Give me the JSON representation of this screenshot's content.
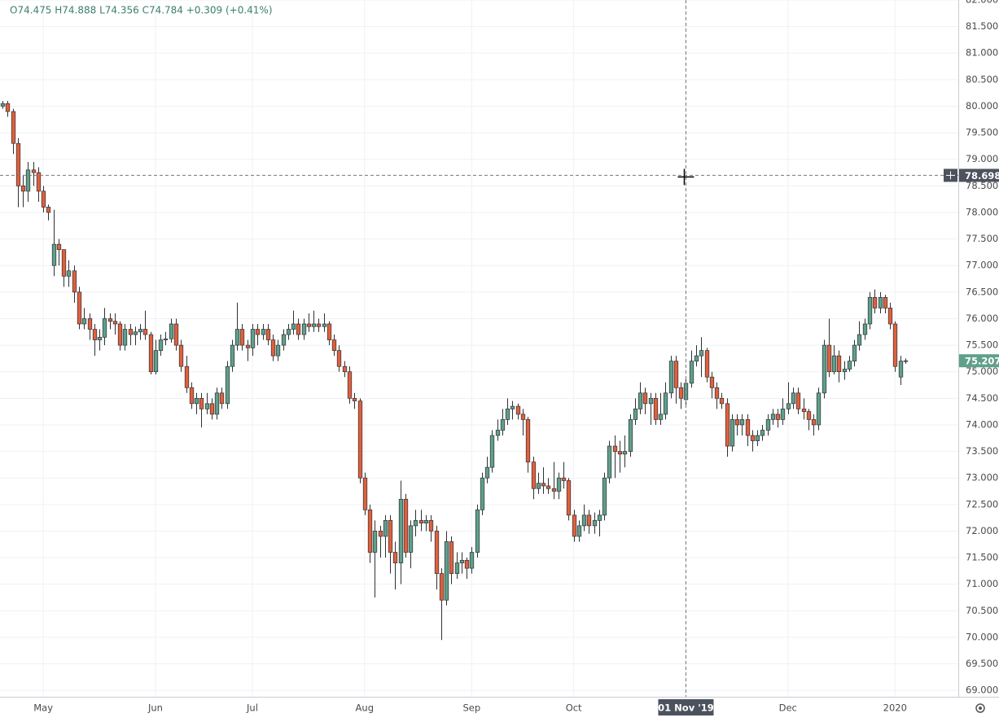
{
  "chart_data": {
    "type": "candlestick",
    "header": "O74.475 H74.888 L74.356 C74.784 +0.309 (+0.41%)",
    "up_color": "#5fa08a",
    "down_color": "#e0603d",
    "border_color": "#2f3136",
    "grid": true,
    "ylim": [
      68.88,
      82.0
    ],
    "yticks": [
      {
        "value": 69,
        "label": "69.000"
      },
      {
        "value": 69.5,
        "label": "69.500"
      },
      {
        "value": 70,
        "label": "70.000"
      },
      {
        "value": 70.5,
        "label": "70.500"
      },
      {
        "value": 71,
        "label": "71.000"
      },
      {
        "value": 71.5,
        "label": "71.500"
      },
      {
        "value": 72,
        "label": "72.000"
      },
      {
        "value": 72.5,
        "label": "72.500"
      },
      {
        "value": 73,
        "label": "73.000"
      },
      {
        "value": 73.5,
        "label": "73.500"
      },
      {
        "value": 74,
        "label": "74.000"
      },
      {
        "value": 74.5,
        "label": "74.500"
      },
      {
        "value": 75,
        "label": "75.000"
      },
      {
        "value": 75.5,
        "label": "75.500"
      },
      {
        "value": 76,
        "label": "76.000"
      },
      {
        "value": 76.5,
        "label": "76.500"
      },
      {
        "value": 77,
        "label": "77.000"
      },
      {
        "value": 77.5,
        "label": "77.500"
      },
      {
        "value": 78,
        "label": "78.000"
      },
      {
        "value": 78.5,
        "label": "78.500"
      },
      {
        "value": 79,
        "label": "79.000"
      },
      {
        "value": 79.5,
        "label": "79.500"
      },
      {
        "value": 80,
        "label": "80.000"
      },
      {
        "value": 80.5,
        "label": "80.500"
      },
      {
        "value": 81,
        "label": "81.000"
      },
      {
        "value": 81.5,
        "label": "81.500"
      },
      {
        "value": 82,
        "label": "82.000"
      }
    ],
    "xlim": [
      -0.48,
      187.4
    ],
    "xticks": [
      {
        "value": 8,
        "label": "May"
      },
      {
        "value": 30,
        "label": "Jun"
      },
      {
        "value": 49,
        "label": "Jul"
      },
      {
        "value": 71,
        "label": "Aug"
      },
      {
        "value": 92,
        "label": "Sep"
      },
      {
        "value": 112,
        "label": "Oct"
      },
      {
        "value": 134,
        "label": "01 Nov '19"
      },
      {
        "value": 154,
        "label": "Dec"
      },
      {
        "value": 175,
        "label": "2020"
      }
    ],
    "crosshair_price": 78.698,
    "last_price": 75.207,
    "candles": [
      [
        80.0,
        80.1,
        79.95,
        80.05
      ],
      [
        80.05,
        80.1,
        79.8,
        79.9
      ],
      [
        79.9,
        79.95,
        79.1,
        79.3
      ],
      [
        79.3,
        79.4,
        78.1,
        78.5
      ],
      [
        78.5,
        78.7,
        78.1,
        78.4
      ],
      [
        78.4,
        78.95,
        78.2,
        78.8
      ],
      [
        78.8,
        78.95,
        78.5,
        78.75
      ],
      [
        78.75,
        78.85,
        78.2,
        78.4
      ],
      [
        78.4,
        78.5,
        78.0,
        78.1
      ],
      [
        78.1,
        78.15,
        77.85,
        78.0
      ],
      [
        77.0,
        78.05,
        76.8,
        77.4
      ],
      [
        77.4,
        77.5,
        77.0,
        77.3
      ],
      [
        77.3,
        77.3,
        76.6,
        76.8
      ],
      [
        76.8,
        77.1,
        76.6,
        76.9
      ],
      [
        76.9,
        77.0,
        76.3,
        76.5
      ],
      [
        76.5,
        76.6,
        75.8,
        75.9
      ],
      [
        75.9,
        76.2,
        75.8,
        76.0
      ],
      [
        76.0,
        76.1,
        75.6,
        75.8
      ],
      [
        75.8,
        75.9,
        75.3,
        75.6
      ],
      [
        75.6,
        75.8,
        75.4,
        75.65
      ],
      [
        75.65,
        76.2,
        75.5,
        76.0
      ],
      [
        76.0,
        76.1,
        75.8,
        75.95
      ],
      [
        75.95,
        76.1,
        75.7,
        75.9
      ],
      [
        75.9,
        75.95,
        75.4,
        75.5
      ],
      [
        75.5,
        75.9,
        75.4,
        75.8
      ],
      [
        75.8,
        75.9,
        75.5,
        75.7
      ],
      [
        75.7,
        75.85,
        75.5,
        75.75
      ],
      [
        75.75,
        75.9,
        75.6,
        75.8
      ],
      [
        75.8,
        76.15,
        75.6,
        75.7
      ],
      [
        75.7,
        75.75,
        74.95,
        75.0
      ],
      [
        75.0,
        75.6,
        74.95,
        75.4
      ],
      [
        75.4,
        75.7,
        75.3,
        75.6
      ],
      [
        75.6,
        75.75,
        75.5,
        75.62
      ],
      [
        75.62,
        76.0,
        75.55,
        75.9
      ],
      [
        75.9,
        76.0,
        75.4,
        75.5
      ],
      [
        75.5,
        75.6,
        75.0,
        75.1
      ],
      [
        75.1,
        75.3,
        74.6,
        74.7
      ],
      [
        74.7,
        74.8,
        74.3,
        74.4
      ],
      [
        74.4,
        74.6,
        74.2,
        74.5
      ],
      [
        74.5,
        74.6,
        73.95,
        74.3
      ],
      [
        74.3,
        74.6,
        74.2,
        74.4
      ],
      [
        74.4,
        74.5,
        74.1,
        74.2
      ],
      [
        74.2,
        74.7,
        74.1,
        74.6
      ],
      [
        74.6,
        74.7,
        74.3,
        74.4
      ],
      [
        74.4,
        75.2,
        74.3,
        75.1
      ],
      [
        75.1,
        75.6,
        75.0,
        75.5
      ],
      [
        75.5,
        76.3,
        75.4,
        75.8
      ],
      [
        75.8,
        75.9,
        75.4,
        75.5
      ],
      [
        75.5,
        75.6,
        75.2,
        75.45
      ],
      [
        75.45,
        75.9,
        75.3,
        75.8
      ],
      [
        75.8,
        75.9,
        75.5,
        75.7
      ],
      [
        75.7,
        75.9,
        75.6,
        75.8
      ],
      [
        75.8,
        75.9,
        75.5,
        75.6
      ],
      [
        75.6,
        75.7,
        75.2,
        75.3
      ],
      [
        75.3,
        75.6,
        75.2,
        75.5
      ],
      [
        75.5,
        75.8,
        75.4,
        75.7
      ],
      [
        75.7,
        75.9,
        75.6,
        75.8
      ],
      [
        75.8,
        76.15,
        75.7,
        75.9
      ],
      [
        75.9,
        76.0,
        75.6,
        75.7
      ],
      [
        75.7,
        76.0,
        75.6,
        75.9
      ],
      [
        75.9,
        76.1,
        75.75,
        75.85
      ],
      [
        75.85,
        76.15,
        75.75,
        75.9
      ],
      [
        75.9,
        76.0,
        75.75,
        75.85
      ],
      [
        75.85,
        76.1,
        75.75,
        75.9
      ],
      [
        75.9,
        75.95,
        75.5,
        75.6
      ],
      [
        75.6,
        75.7,
        75.3,
        75.4
      ],
      [
        75.4,
        75.5,
        75.0,
        75.1
      ],
      [
        75.1,
        75.2,
        74.9,
        75.0
      ],
      [
        75.0,
        75.1,
        74.4,
        74.5
      ],
      [
        74.5,
        74.6,
        74.3,
        74.45
      ],
      [
        74.45,
        74.5,
        72.9,
        73.0
      ],
      [
        73.0,
        73.1,
        72.3,
        72.4
      ],
      [
        72.4,
        72.5,
        71.4,
        71.6
      ],
      [
        71.6,
        72.2,
        70.75,
        72.0
      ],
      [
        72.0,
        72.1,
        71.5,
        71.9
      ],
      [
        71.9,
        72.3,
        71.5,
        72.2
      ],
      [
        72.2,
        72.3,
        71.2,
        71.6
      ],
      [
        71.6,
        71.8,
        70.9,
        71.4
      ],
      [
        71.4,
        72.95,
        71.0,
        72.6
      ],
      [
        72.6,
        72.7,
        71.5,
        71.6
      ],
      [
        71.6,
        72.2,
        71.3,
        72.1
      ],
      [
        72.1,
        72.4,
        71.9,
        72.2
      ],
      [
        72.2,
        72.4,
        72.0,
        72.15
      ],
      [
        72.15,
        72.3,
        72.0,
        72.2
      ],
      [
        72.2,
        72.3,
        71.8,
        72.0
      ],
      [
        72.0,
        72.1,
        70.9,
        71.2
      ],
      [
        71.2,
        71.3,
        69.95,
        70.7
      ],
      [
        70.7,
        72.0,
        70.6,
        71.8
      ],
      [
        71.8,
        71.9,
        71.0,
        71.2
      ],
      [
        71.2,
        71.6,
        71.1,
        71.4
      ],
      [
        71.4,
        71.6,
        71.2,
        71.45
      ],
      [
        71.45,
        71.5,
        71.1,
        71.3
      ],
      [
        71.3,
        71.7,
        71.2,
        71.6
      ],
      [
        71.6,
        72.5,
        71.5,
        72.4
      ],
      [
        72.4,
        73.1,
        72.3,
        73.0
      ],
      [
        73.0,
        73.4,
        72.9,
        73.2
      ],
      [
        73.2,
        73.9,
        73.1,
        73.8
      ],
      [
        73.8,
        74.1,
        73.7,
        73.9
      ],
      [
        73.9,
        74.3,
        73.8,
        74.1
      ],
      [
        74.1,
        74.5,
        74.0,
        74.3
      ],
      [
        74.3,
        74.45,
        74.1,
        74.35
      ],
      [
        74.35,
        74.4,
        74.1,
        74.2
      ],
      [
        74.2,
        74.3,
        73.8,
        74.1
      ],
      [
        74.1,
        74.15,
        73.1,
        73.3
      ],
      [
        73.3,
        73.4,
        72.6,
        72.8
      ],
      [
        72.8,
        73.1,
        72.7,
        72.9
      ],
      [
        72.9,
        73.2,
        72.7,
        72.85
      ],
      [
        72.85,
        73.0,
        72.7,
        72.8
      ],
      [
        72.8,
        73.3,
        72.6,
        72.75
      ],
      [
        72.75,
        73.1,
        72.6,
        73.0
      ],
      [
        73.0,
        73.3,
        72.8,
        72.95
      ],
      [
        72.95,
        73.0,
        72.2,
        72.3
      ],
      [
        72.3,
        72.4,
        71.8,
        71.9
      ],
      [
        71.9,
        72.2,
        71.8,
        72.1
      ],
      [
        72.1,
        72.5,
        72.0,
        72.3
      ],
      [
        72.3,
        72.4,
        71.95,
        72.1
      ],
      [
        72.1,
        72.35,
        71.95,
        72.2
      ],
      [
        72.2,
        72.4,
        71.9,
        72.3
      ],
      [
        72.3,
        73.1,
        72.2,
        73.0
      ],
      [
        73.0,
        73.7,
        72.9,
        73.6
      ],
      [
        73.6,
        73.8,
        73.0,
        73.5
      ],
      [
        73.5,
        73.7,
        73.1,
        73.45
      ],
      [
        73.45,
        73.8,
        73.2,
        73.5
      ],
      [
        73.5,
        74.2,
        73.4,
        74.1
      ],
      [
        74.1,
        74.5,
        74.0,
        74.3
      ],
      [
        74.3,
        74.8,
        74.2,
        74.6
      ],
      [
        74.6,
        74.7,
        74.2,
        74.4
      ],
      [
        74.4,
        74.6,
        74.0,
        74.5
      ],
      [
        74.5,
        74.6,
        74.0,
        74.1
      ],
      [
        74.1,
        74.6,
        74.0,
        74.2
      ],
      [
        74.2,
        74.8,
        74.1,
        74.6
      ],
      [
        74.6,
        75.3,
        74.5,
        75.2
      ],
      [
        75.2,
        75.3,
        74.4,
        74.7
      ],
      [
        74.7,
        74.8,
        74.3,
        74.5
      ],
      [
        74.475,
        74.888,
        74.356,
        74.784
      ],
      [
        74.784,
        75.4,
        74.7,
        75.2
      ],
      [
        75.2,
        75.5,
        75.1,
        75.3
      ],
      [
        75.3,
        75.65,
        74.9,
        75.4
      ],
      [
        75.4,
        75.45,
        74.8,
        74.9
      ],
      [
        74.9,
        75.0,
        74.5,
        74.7
      ],
      [
        74.7,
        74.8,
        74.3,
        74.5
      ],
      [
        74.5,
        74.6,
        74.3,
        74.4
      ],
      [
        74.4,
        74.5,
        73.4,
        73.6
      ],
      [
        73.6,
        74.2,
        73.5,
        74.1
      ],
      [
        74.1,
        74.2,
        73.8,
        74.0
      ],
      [
        74.0,
        74.2,
        73.8,
        74.1
      ],
      [
        74.1,
        74.2,
        73.6,
        73.8
      ],
      [
        73.8,
        73.9,
        73.5,
        73.7
      ],
      [
        73.7,
        73.9,
        73.6,
        73.8
      ],
      [
        73.8,
        74.0,
        73.7,
        73.9
      ],
      [
        73.9,
        74.2,
        73.8,
        74.1
      ],
      [
        74.1,
        74.3,
        74.0,
        74.2
      ],
      [
        74.2,
        74.3,
        73.95,
        74.1
      ],
      [
        74.1,
        74.5,
        74.0,
        74.3
      ],
      [
        74.3,
        74.8,
        74.2,
        74.4
      ],
      [
        74.4,
        74.7,
        74.3,
        74.6
      ],
      [
        74.6,
        74.7,
        74.2,
        74.3
      ],
      [
        74.3,
        74.5,
        74.1,
        74.25
      ],
      [
        74.25,
        74.3,
        73.9,
        74.1
      ],
      [
        74.1,
        74.2,
        73.8,
        74.0
      ],
      [
        74.0,
        74.7,
        73.9,
        74.6
      ],
      [
        74.6,
        75.6,
        74.5,
        75.5
      ],
      [
        75.5,
        76.0,
        74.9,
        75.0
      ],
      [
        75.0,
        75.5,
        74.95,
        75.3
      ],
      [
        75.3,
        75.4,
        74.8,
        75.0
      ],
      [
        75.0,
        75.2,
        74.85,
        75.05
      ],
      [
        75.05,
        75.3,
        75.0,
        75.2
      ],
      [
        75.2,
        75.6,
        75.1,
        75.5
      ],
      [
        75.5,
        75.95,
        75.4,
        75.7
      ],
      [
        75.7,
        76.0,
        75.6,
        75.9
      ],
      [
        75.9,
        76.5,
        75.8,
        76.4
      ],
      [
        76.4,
        76.55,
        76.1,
        76.2
      ],
      [
        76.2,
        76.5,
        76.1,
        76.4
      ],
      [
        76.4,
        76.45,
        76.1,
        76.2
      ],
      [
        76.2,
        76.3,
        75.8,
        75.9
      ],
      [
        75.9,
        75.95,
        75.0,
        75.1
      ],
      [
        74.9,
        75.3,
        74.75,
        75.2
      ],
      [
        75.2,
        75.25,
        75.15,
        75.207
      ]
    ]
  }
}
